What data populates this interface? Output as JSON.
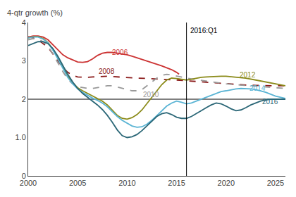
{
  "chart_data": {
    "type": "line",
    "ylabel": "4-qtr growth (%)",
    "xlim": [
      2000,
      2026
    ],
    "ylim": [
      0,
      4
    ],
    "xticks": [
      2000,
      2005,
      2010,
      2015,
      2020,
      2025
    ],
    "yticks": [
      0,
      {
        "value": 1.0,
        "label": "1.0"
      },
      2,
      3,
      4
    ],
    "grid": false,
    "hline_y": 2.0,
    "vline": {
      "x": 2016.0,
      "label": "2016:Q1",
      "label_y": 3.92
    },
    "series": [
      {
        "name": "2006",
        "color": "#cc3333",
        "line_style": "solid",
        "label_x": 2008.3,
        "label_y": 3.22,
        "x": [
          2000,
          2000.5,
          2001,
          2001.5,
          2002,
          2002.5,
          2003,
          2003.5,
          2004,
          2004.5,
          2005,
          2005.5,
          2006,
          2006.5,
          2007,
          2007.5,
          2008,
          2008.5,
          2009,
          2009.5,
          2010,
          2010.5,
          2011,
          2011.5,
          2012,
          2012.5,
          2013,
          2013.5,
          2014,
          2014.5,
          2015,
          2015.25
        ],
        "values": [
          3.62,
          3.65,
          3.65,
          3.62,
          3.55,
          3.42,
          3.28,
          3.16,
          3.08,
          3.02,
          2.97,
          2.96,
          2.98,
          3.05,
          3.14,
          3.2,
          3.22,
          3.22,
          3.2,
          3.18,
          3.16,
          3.12,
          3.08,
          3.04,
          3.0,
          2.96,
          2.91,
          2.87,
          2.82,
          2.77,
          2.7,
          2.65
        ]
      },
      {
        "name": "2008",
        "color": "#8b1a1a",
        "line_style": "dashed",
        "label_x": 2007.0,
        "label_y": 2.73,
        "x": [
          2000,
          2000.5,
          2001,
          2001.5,
          2002,
          2002.5,
          2003,
          2003.5,
          2004,
          2004.5,
          2005,
          2005.5,
          2006,
          2006.5,
          2007,
          2007.5,
          2008,
          2008.5,
          2009,
          2009.5,
          2010,
          2011,
          2012,
          2013,
          2014,
          2015,
          2016,
          2017,
          2018,
          2019,
          2020,
          2021,
          2022,
          2023,
          2024,
          2025,
          2026
        ],
        "values": [
          3.62,
          3.6,
          3.55,
          3.45,
          3.35,
          3.18,
          3.0,
          2.83,
          2.7,
          2.62,
          2.58,
          2.57,
          2.57,
          2.58,
          2.59,
          2.6,
          2.6,
          2.59,
          2.58,
          2.57,
          2.56,
          2.55,
          2.54,
          2.53,
          2.52,
          2.5,
          2.48,
          2.46,
          2.44,
          2.42,
          2.4,
          2.38,
          2.37,
          2.36,
          2.35,
          2.35,
          2.35
        ]
      },
      {
        "name": "2010",
        "color": "#999999",
        "line_style": "dashed",
        "label_x": 2011.5,
        "label_y": 2.12,
        "x": [
          2000,
          2000.5,
          2001,
          2001.5,
          2002,
          2002.5,
          2003,
          2003.5,
          2004,
          2004.5,
          2005,
          2005.5,
          2006,
          2006.5,
          2007,
          2007.5,
          2008,
          2008.5,
          2009,
          2009.5,
          2010,
          2010.5,
          2011,
          2011.5,
          2012,
          2012.5,
          2013,
          2013.5,
          2014,
          2014.5,
          2015,
          2015.5,
          2016,
          2016.5,
          2017,
          2017.5,
          2018,
          2018.5,
          2019,
          2019.5,
          2020,
          2021,
          2022,
          2023,
          2024,
          2025,
          2026
        ],
        "values": [
          3.55,
          3.58,
          3.57,
          3.5,
          3.38,
          3.18,
          2.95,
          2.72,
          2.52,
          2.4,
          2.33,
          2.3,
          2.28,
          2.28,
          2.3,
          2.32,
          2.35,
          2.35,
          2.32,
          2.28,
          2.25,
          2.22,
          2.22,
          2.25,
          2.35,
          2.45,
          2.55,
          2.62,
          2.65,
          2.63,
          2.6,
          2.57,
          2.55,
          2.53,
          2.51,
          2.49,
          2.47,
          2.45,
          2.43,
          2.42,
          2.4,
          2.38,
          2.36,
          2.34,
          2.32,
          2.3,
          2.28
        ]
      },
      {
        "name": "2012",
        "color": "#8b8b1a",
        "line_style": "solid",
        "label_x": 2021.2,
        "label_y": 2.63,
        "x": [
          2000,
          2000.5,
          2001,
          2001.5,
          2002,
          2002.5,
          2003,
          2003.5,
          2004,
          2004.5,
          2005,
          2005.5,
          2006,
          2006.5,
          2007,
          2007.5,
          2008,
          2008.5,
          2009,
          2009.5,
          2010,
          2010.5,
          2011,
          2011.5,
          2012,
          2012.5,
          2013,
          2013.5,
          2014,
          2014.5,
          2015,
          2015.5,
          2016,
          2016.5,
          2017,
          2017.5,
          2018,
          2018.5,
          2019,
          2019.5,
          2020,
          2021,
          2022,
          2023,
          2024,
          2025,
          2026
        ],
        "values": [
          3.6,
          3.63,
          3.63,
          3.58,
          3.48,
          3.3,
          3.08,
          2.83,
          2.6,
          2.43,
          2.3,
          2.22,
          2.15,
          2.08,
          2.02,
          1.95,
          1.85,
          1.72,
          1.58,
          1.5,
          1.48,
          1.52,
          1.6,
          1.72,
          1.88,
          2.05,
          2.22,
          2.38,
          2.5,
          2.55,
          2.54,
          2.52,
          2.5,
          2.52,
          2.55,
          2.57,
          2.58,
          2.59,
          2.6,
          2.6,
          2.6,
          2.58,
          2.55,
          2.5,
          2.45,
          2.4,
          2.35
        ]
      },
      {
        "name": "2014",
        "color": "#5ab4d4",
        "line_style": "solid",
        "label_x": 2022.2,
        "label_y": 2.28,
        "x": [
          2000,
          2000.5,
          2001,
          2001.5,
          2002,
          2002.5,
          2003,
          2003.5,
          2004,
          2004.5,
          2005,
          2005.5,
          2006,
          2006.5,
          2007,
          2007.5,
          2008,
          2008.5,
          2009,
          2009.5,
          2010,
          2010.5,
          2011,
          2011.5,
          2012,
          2012.5,
          2013,
          2013.5,
          2014,
          2014.5,
          2015,
          2015.5,
          2016,
          2016.5,
          2017,
          2017.5,
          2018,
          2018.5,
          2019,
          2019.5,
          2020,
          2020.5,
          2021,
          2021.5,
          2022,
          2022.5,
          2023,
          2023.5,
          2024,
          2024.5,
          2025,
          2026
        ],
        "values": [
          3.6,
          3.62,
          3.62,
          3.57,
          3.47,
          3.28,
          3.05,
          2.8,
          2.57,
          2.4,
          2.27,
          2.18,
          2.1,
          2.03,
          1.97,
          1.9,
          1.8,
          1.68,
          1.55,
          1.45,
          1.38,
          1.3,
          1.27,
          1.28,
          1.35,
          1.45,
          1.57,
          1.7,
          1.82,
          1.9,
          1.95,
          1.92,
          1.88,
          1.9,
          1.95,
          2.0,
          2.05,
          2.1,
          2.15,
          2.2,
          2.22,
          2.25,
          2.27,
          2.28,
          2.28,
          2.27,
          2.25,
          2.22,
          2.18,
          2.13,
          2.08,
          2.02
        ]
      },
      {
        "name": "2016",
        "color": "#2b6777",
        "line_style": "solid",
        "label_x": 2023.5,
        "label_y": 1.93,
        "x": [
          2000,
          2000.5,
          2001,
          2001.5,
          2002,
          2002.5,
          2003,
          2003.5,
          2004,
          2004.5,
          2005,
          2005.5,
          2006,
          2006.5,
          2007,
          2007.5,
          2008,
          2008.5,
          2009,
          2009.5,
          2010,
          2010.5,
          2011,
          2011.5,
          2012,
          2012.5,
          2013,
          2013.5,
          2014,
          2014.5,
          2015,
          2015.5,
          2016,
          2016.5,
          2017,
          2017.5,
          2018,
          2018.5,
          2019,
          2019.5,
          2020,
          2020.5,
          2021,
          2021.5,
          2022,
          2022.5,
          2023,
          2023.5,
          2024,
          2024.5,
          2025,
          2026
        ],
        "values": [
          3.4,
          3.45,
          3.5,
          3.5,
          3.45,
          3.32,
          3.12,
          2.88,
          2.65,
          2.45,
          2.28,
          2.15,
          2.05,
          1.95,
          1.85,
          1.73,
          1.58,
          1.4,
          1.2,
          1.05,
          1.0,
          1.02,
          1.08,
          1.18,
          1.3,
          1.43,
          1.55,
          1.62,
          1.65,
          1.6,
          1.53,
          1.5,
          1.5,
          1.55,
          1.62,
          1.7,
          1.78,
          1.85,
          1.9,
          1.88,
          1.82,
          1.75,
          1.7,
          1.72,
          1.78,
          1.85,
          1.9,
          1.95,
          1.98,
          2.0,
          2.0,
          2.0
        ]
      }
    ]
  }
}
